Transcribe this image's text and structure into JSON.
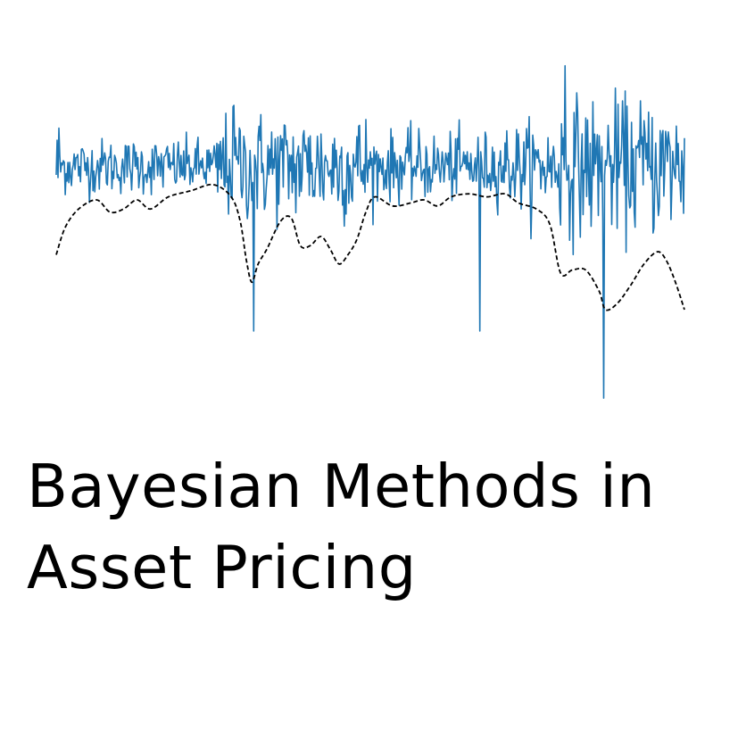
{
  "title": {
    "line1": "Bayesian Methods in",
    "line2": "Asset Pricing"
  },
  "colors": {
    "returns_line": "#1f77b4",
    "trend_line": "#000000",
    "background": "#ffffff",
    "text": "#000000"
  },
  "chart_data": {
    "type": "line",
    "axes_visible": false,
    "grid": false,
    "legend": "none",
    "x": {
      "start": 0,
      "end": 700
    },
    "ylim": [
      -6,
      6
    ],
    "series": [
      {
        "style": "solid",
        "color": "#1f77b4",
        "kind": "noisy-returns",
        "sample_count": 700,
        "baseline": 2.3,
        "spikes": [
          {
            "x": 198,
            "y": 4.3
          },
          {
            "x": 220,
            "y": -3.1
          },
          {
            "x": 283,
            "y": 3.3
          },
          {
            "x": 472,
            "y": -3.1
          },
          {
            "x": 567,
            "y": 5.6
          },
          {
            "x": 610,
            "y": -5.3
          },
          {
            "x": 655,
            "y": 3.8
          }
        ]
      },
      {
        "style": "dashed",
        "color": "#000000",
        "kind": "smoothed-level",
        "points": [
          [
            0,
            -0.6
          ],
          [
            10,
            0.3
          ],
          [
            25,
            0.9
          ],
          [
            45,
            1.2
          ],
          [
            60,
            0.8
          ],
          [
            75,
            0.9
          ],
          [
            90,
            1.2
          ],
          [
            105,
            0.9
          ],
          [
            125,
            1.3
          ],
          [
            150,
            1.5
          ],
          [
            175,
            1.7
          ],
          [
            195,
            1.3
          ],
          [
            205,
            0.5
          ],
          [
            212,
            -0.8
          ],
          [
            218,
            -1.5
          ],
          [
            225,
            -0.9
          ],
          [
            235,
            -0.4
          ],
          [
            250,
            0.5
          ],
          [
            262,
            0.6
          ],
          [
            272,
            -0.3
          ],
          [
            283,
            -0.3
          ],
          [
            295,
            0.0
          ],
          [
            305,
            -0.4
          ],
          [
            315,
            -0.9
          ],
          [
            325,
            -0.6
          ],
          [
            335,
            -0.1
          ],
          [
            345,
            0.8
          ],
          [
            355,
            1.3
          ],
          [
            375,
            1.0
          ],
          [
            395,
            1.1
          ],
          [
            410,
            1.2
          ],
          [
            425,
            1.0
          ],
          [
            440,
            1.3
          ],
          [
            460,
            1.4
          ],
          [
            480,
            1.3
          ],
          [
            500,
            1.4
          ],
          [
            515,
            1.1
          ],
          [
            535,
            0.9
          ],
          [
            550,
            0.4
          ],
          [
            562,
            -1.2
          ],
          [
            575,
            -1.1
          ],
          [
            590,
            -1.1
          ],
          [
            605,
            -1.8
          ],
          [
            612,
            -2.4
          ],
          [
            625,
            -2.2
          ],
          [
            640,
            -1.6
          ],
          [
            655,
            -0.9
          ],
          [
            670,
            -0.5
          ],
          [
            680,
            -0.8
          ],
          [
            690,
            -1.5
          ],
          [
            700,
            -2.4
          ]
        ]
      }
    ]
  }
}
